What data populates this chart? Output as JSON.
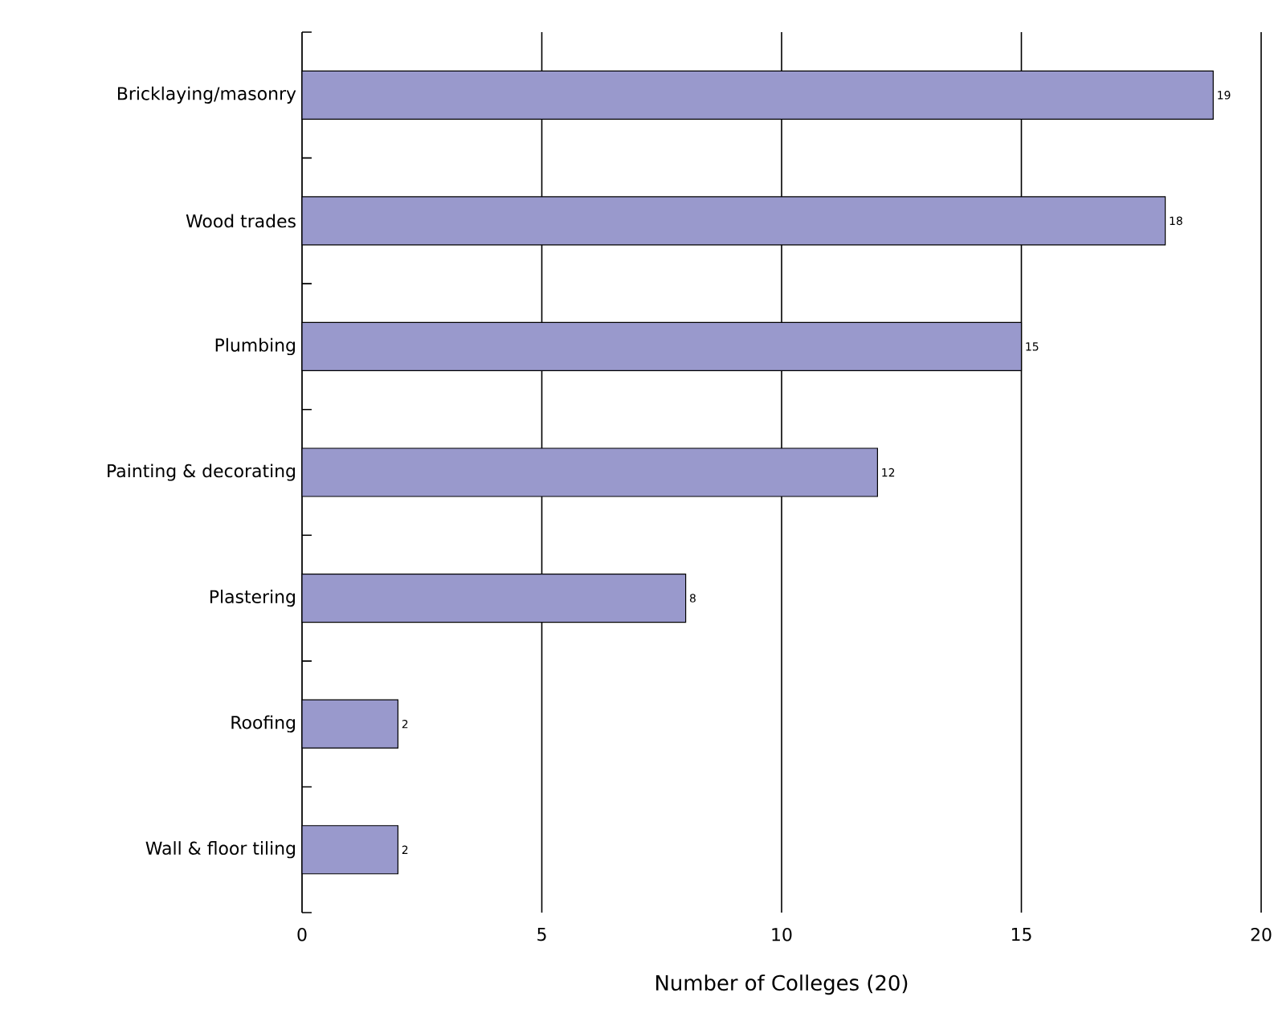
{
  "chart_data": {
    "type": "bar",
    "orientation": "horizontal",
    "xlabel": "Number of Colleges (20)",
    "categories": [
      "Bricklaying/masonry",
      "Wood trades",
      "Plumbing",
      "Painting & decorating",
      "Plastering",
      "Roofing",
      "Wall & floor tiling"
    ],
    "values": [
      19,
      18,
      15,
      12,
      8,
      2,
      2
    ],
    "color": "#9999cc",
    "xlim": [
      0,
      20
    ],
    "xticks": [
      0,
      5,
      10,
      15,
      20
    ],
    "grid": "x",
    "data_labels": true
  }
}
